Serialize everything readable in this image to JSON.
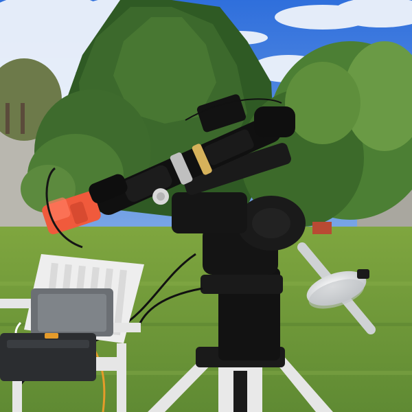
{
  "scene": {
    "labels": {
      "scope_body_text": "",
      "counterweight_text": ""
    },
    "colors": {
      "sky": "#4f7fd8",
      "cloud": "#e9eef6",
      "hedge_dark": "#2f5a24",
      "hedge_mid": "#4e7c35",
      "grass": "#6f9a3b",
      "wall": "#b9b7af",
      "mount_black": "#141414",
      "camera_orange": "#f05a3c",
      "chair_white": "#e8e8e6",
      "case_grey": "#6b6f74",
      "cable_orange": "#e59b2a",
      "metal": "#d7d9da"
    }
  }
}
